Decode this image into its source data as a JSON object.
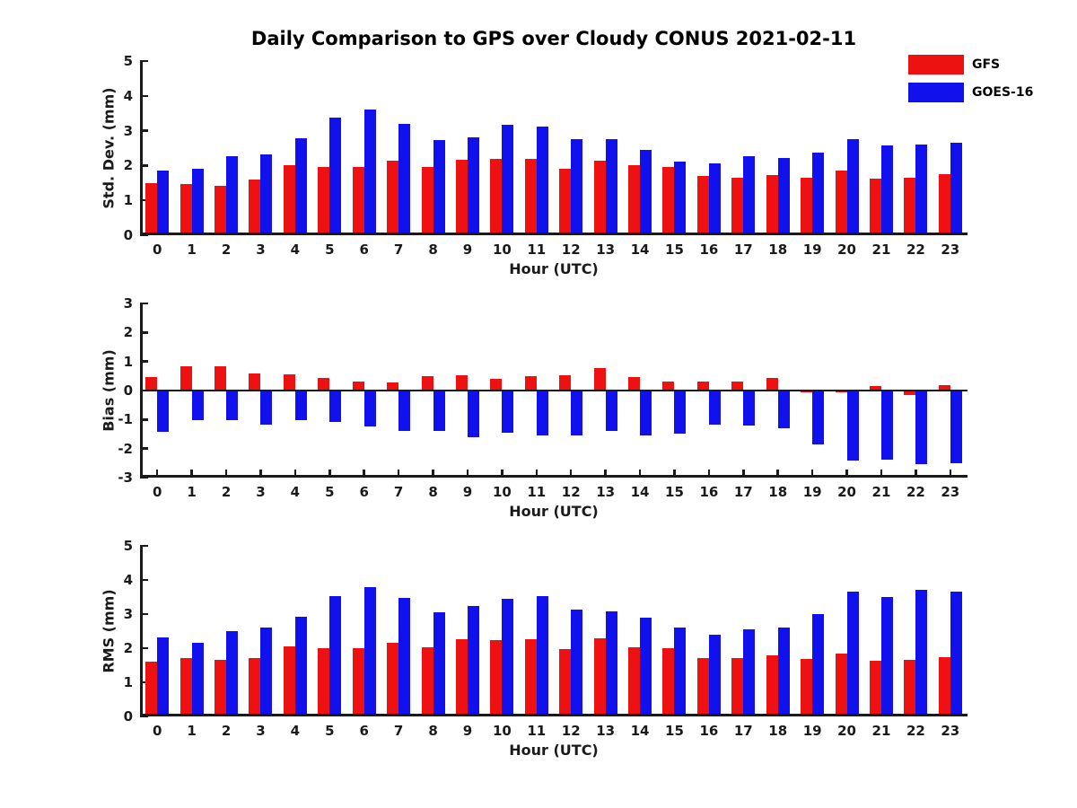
{
  "title": "Daily Comparison to GPS over Cloudy CONUS 2021-02-11",
  "legend": {
    "items": [
      {
        "label": "GFS",
        "color": "#ee1111"
      },
      {
        "label": "GOES-16",
        "color": "#1111ee"
      }
    ]
  },
  "colors": {
    "gfs": "#ee1111",
    "goes16": "#1111ee",
    "axis": "#1a1a1a"
  },
  "chart_data": [
    {
      "type": "bar",
      "title": "",
      "ylabel": "Std. Dev. (mm)",
      "xlabel": "Hour (UTC)",
      "ylim": [
        0,
        5
      ],
      "yticks": [
        0,
        1,
        2,
        3,
        4,
        5
      ],
      "categories": [
        "0",
        "1",
        "2",
        "3",
        "4",
        "5",
        "6",
        "7",
        "8",
        "9",
        "10",
        "11",
        "12",
        "13",
        "14",
        "15",
        "16",
        "17",
        "18",
        "19",
        "20",
        "21",
        "22",
        "23"
      ],
      "legend_position": "upper-right-outside",
      "grid": false,
      "series": [
        {
          "name": "GFS",
          "color": "#ee1111",
          "values": [
            1.5,
            1.47,
            1.42,
            1.6,
            2.0,
            1.97,
            1.97,
            2.15,
            1.97,
            2.17,
            2.2,
            2.2,
            1.92,
            2.15,
            2.0,
            1.95,
            1.7,
            1.66,
            1.73,
            1.66,
            1.86,
            1.62,
            1.65,
            1.74
          ]
        },
        {
          "name": "GOES-16",
          "color": "#1111ee",
          "values": [
            1.85,
            1.9,
            2.28,
            2.33,
            2.78,
            3.38,
            3.6,
            3.2,
            2.73,
            2.82,
            3.17,
            3.13,
            2.75,
            2.77,
            2.45,
            2.12,
            2.05,
            2.27,
            2.21,
            2.36,
            2.76,
            2.57,
            2.6,
            2.65
          ]
        }
      ]
    },
    {
      "type": "bar",
      "title": "",
      "ylabel": "Bias (mm)",
      "xlabel": "Hour (UTC)",
      "ylim": [
        -3,
        3
      ],
      "yticks": [
        -3,
        -2,
        -1,
        0,
        1,
        2,
        3
      ],
      "categories": [
        "0",
        "1",
        "2",
        "3",
        "4",
        "5",
        "6",
        "7",
        "8",
        "9",
        "10",
        "11",
        "12",
        "13",
        "14",
        "15",
        "16",
        "17",
        "18",
        "19",
        "20",
        "21",
        "22",
        "23"
      ],
      "grid": false,
      "series": [
        {
          "name": "GFS",
          "color": "#ee1111",
          "values": [
            0.45,
            0.84,
            0.85,
            0.6,
            0.55,
            0.42,
            0.31,
            0.29,
            0.5,
            0.54,
            0.39,
            0.49,
            0.53,
            0.78,
            0.45,
            0.31,
            0.31,
            0.32,
            0.44,
            -0.06,
            -0.06,
            0.14,
            -0.15,
            0.18
          ]
        },
        {
          "name": "GOES-16",
          "color": "#1111ee",
          "values": [
            -1.41,
            -1.02,
            -1.01,
            -1.18,
            -1.02,
            -1.09,
            -1.25,
            -1.4,
            -1.39,
            -1.61,
            -1.44,
            -1.56,
            -1.54,
            -1.39,
            -1.55,
            -1.49,
            -1.18,
            -1.2,
            -1.3,
            -1.86,
            -2.4,
            -2.39,
            -2.55,
            -2.5
          ]
        }
      ]
    },
    {
      "type": "bar",
      "title": "",
      "ylabel": "RMS (mm)",
      "xlabel": "Hour (UTC)",
      "ylim": [
        0,
        5
      ],
      "yticks": [
        0,
        1,
        2,
        3,
        4,
        5
      ],
      "categories": [
        "0",
        "1",
        "2",
        "3",
        "4",
        "5",
        "6",
        "7",
        "8",
        "9",
        "10",
        "11",
        "12",
        "13",
        "14",
        "15",
        "16",
        "17",
        "18",
        "19",
        "20",
        "21",
        "22",
        "23"
      ],
      "grid": false,
      "series": [
        {
          "name": "GFS",
          "color": "#ee1111",
          "values": [
            1.6,
            1.72,
            1.66,
            1.72,
            2.05,
            2.01,
            2.01,
            2.16,
            2.03,
            2.26,
            2.23,
            2.26,
            1.98,
            2.28,
            2.02,
            2.0,
            1.71,
            1.7,
            1.79,
            1.69,
            1.85,
            1.63,
            1.66,
            1.73
          ]
        },
        {
          "name": "GOES-16",
          "color": "#1111ee",
          "values": [
            2.31,
            2.16,
            2.49,
            2.6,
            2.92,
            3.52,
            3.8,
            3.47,
            3.05,
            3.25,
            3.45,
            3.52,
            3.13,
            3.08,
            2.89,
            2.61,
            2.4,
            2.56,
            2.6,
            3.01,
            3.65,
            3.5,
            3.7,
            3.67
          ]
        }
      ]
    }
  ]
}
